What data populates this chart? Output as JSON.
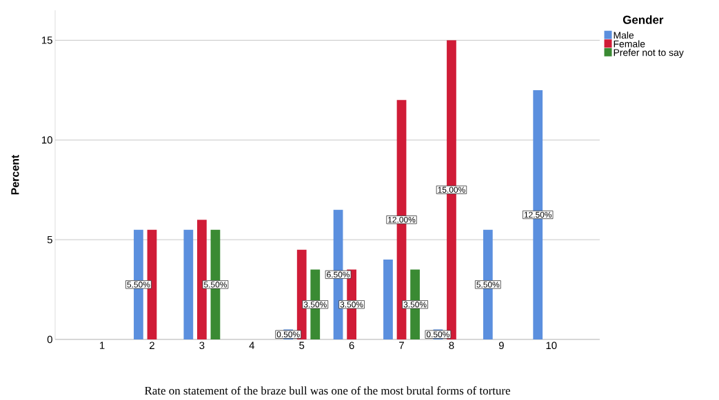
{
  "chart_data": {
    "type": "bar",
    "xlabel": "Rate on statement of the braze bull was one of the most brutal forms of torture",
    "ylabel": "Percent",
    "legend_title": "Gender",
    "categories": [
      "1",
      "2",
      "3",
      "4",
      "5",
      "6",
      "7",
      "8",
      "9",
      "10"
    ],
    "series": [
      {
        "name": "Male",
        "color": "#5b8fde",
        "values": [
          null,
          5.5,
          5.5,
          null,
          0.5,
          6.5,
          4,
          0.5,
          5.5,
          12.5
        ],
        "value_labels": [
          null,
          "5.50%",
          null,
          null,
          "0.50%",
          "6.50%",
          null,
          "0.50%",
          "5.50%",
          "12.50%"
        ]
      },
      {
        "name": "Female",
        "color": "#d01c37",
        "values": [
          null,
          5.5,
          6,
          null,
          4.5,
          3.5,
          12,
          15,
          null,
          null
        ],
        "value_labels": [
          null,
          null,
          null,
          null,
          null,
          "3.50%",
          "12.00%",
          "15.00%",
          null,
          null
        ]
      },
      {
        "name": "Prefer not to say",
        "color": "#3a8a33",
        "values": [
          null,
          null,
          5.5,
          null,
          3.5,
          null,
          3.5,
          null,
          null,
          null
        ],
        "value_labels": [
          null,
          null,
          "5.50%",
          null,
          "3.50%",
          null,
          "3.50%",
          null,
          null,
          null
        ]
      }
    ],
    "ylim": [
      0,
      16.5
    ],
    "yticks": [
      0,
      5,
      10,
      15
    ],
    "grid": "y",
    "legend": "top right"
  }
}
